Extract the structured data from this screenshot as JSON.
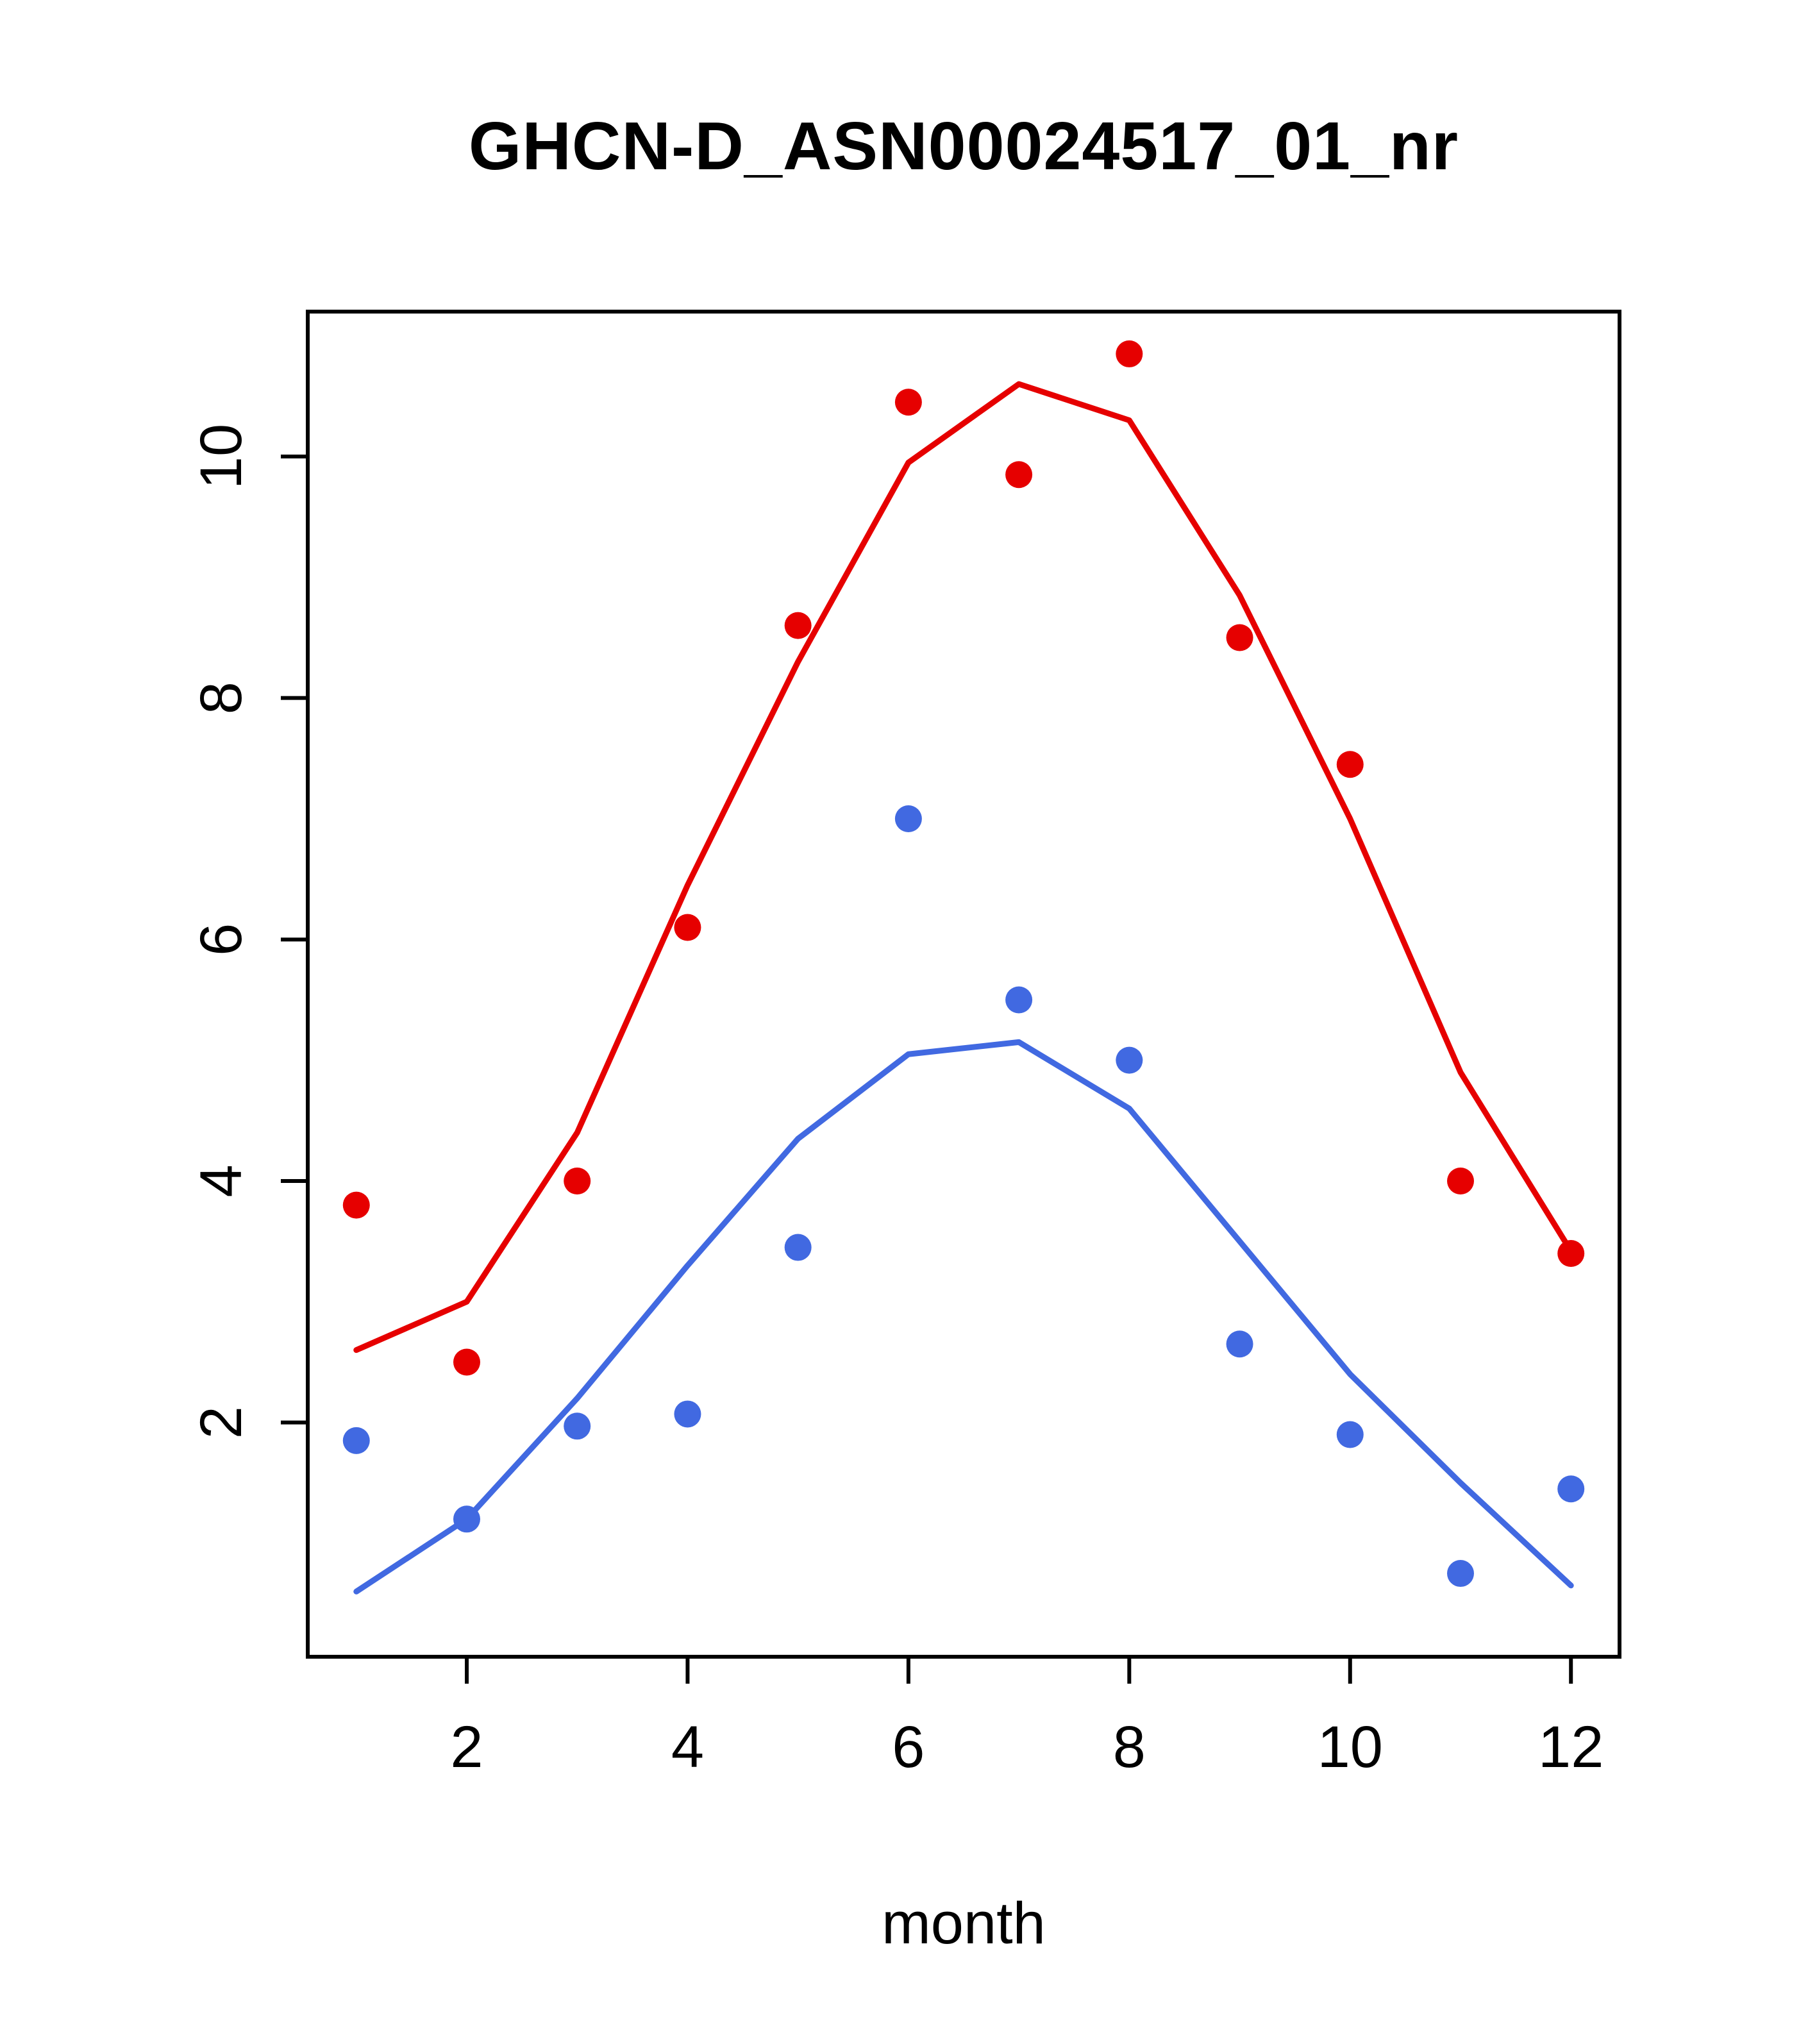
{
  "figure": {
    "background": "#ffffff",
    "axis_color": "#000000"
  },
  "chart_data": {
    "type": "scatter",
    "title": "GHCN-D_ASN00024517_01_nr",
    "xlabel": "month",
    "ylabel": "",
    "x": [
      1,
      2,
      3,
      4,
      5,
      6,
      7,
      8,
      9,
      10,
      11,
      12
    ],
    "x_ticks": [
      2,
      4,
      6,
      8,
      10,
      12
    ],
    "y_ticks": [
      2,
      4,
      6,
      8,
      10
    ],
    "xlim": [
      0.56,
      12.44
    ],
    "ylim": [
      0.06,
      11.2
    ],
    "grid": false,
    "legend": "none",
    "series": [
      {
        "name": "red-line",
        "style": "line",
        "color": "#e60000",
        "values": [
          2.6,
          3.0,
          4.4,
          6.45,
          8.3,
          9.95,
          10.6,
          10.3,
          8.85,
          7.0,
          4.9,
          3.42
        ]
      },
      {
        "name": "blue-line",
        "style": "line",
        "color": "#4169e1",
        "values": [
          0.6,
          1.2,
          2.2,
          3.3,
          4.35,
          5.05,
          5.15,
          4.6,
          3.5,
          2.4,
          1.5,
          0.65
        ]
      },
      {
        "name": "red-points",
        "style": "points",
        "color": "#e60000",
        "values": [
          3.8,
          2.5,
          4.0,
          6.1,
          8.6,
          10.45,
          9.85,
          10.85,
          8.5,
          7.45,
          4.0,
          3.4
        ]
      },
      {
        "name": "blue-points",
        "style": "points",
        "color": "#4169e1",
        "values": [
          1.85,
          1.2,
          1.97,
          2.07,
          3.45,
          7.0,
          5.5,
          5.0,
          2.65,
          1.9,
          0.75,
          1.45
        ]
      }
    ]
  }
}
